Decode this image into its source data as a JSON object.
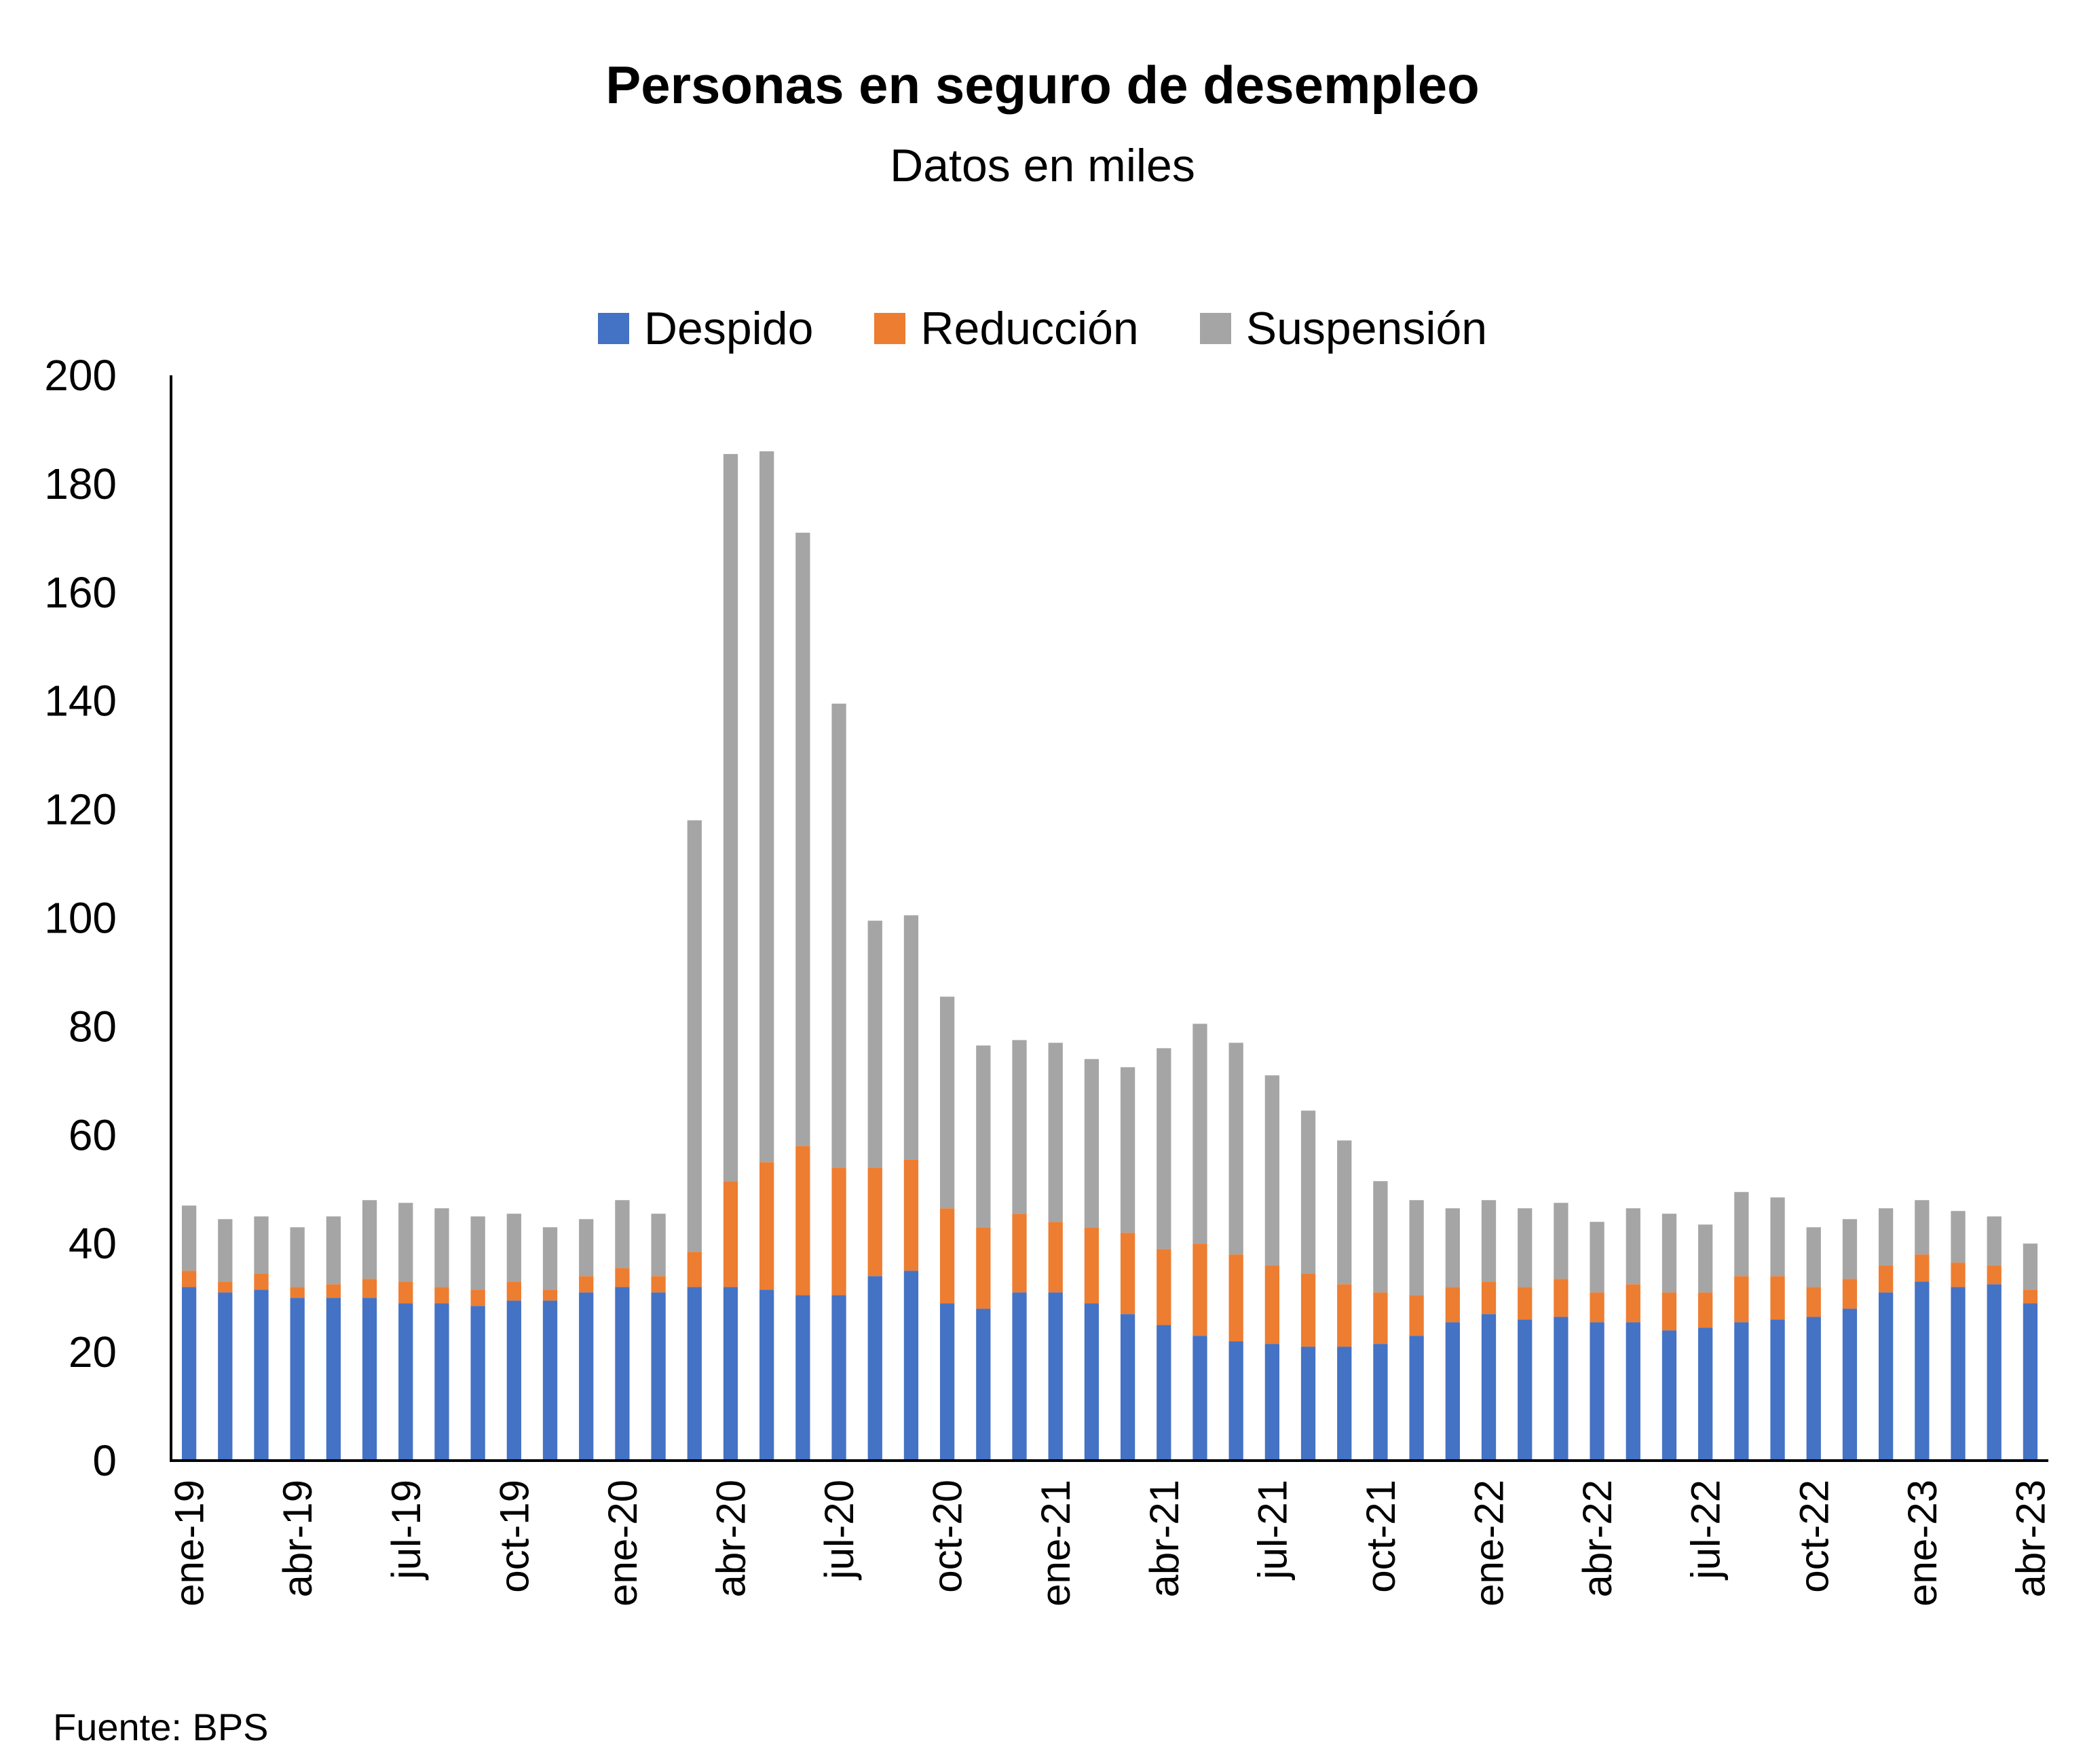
{
  "chart_data": {
    "type": "bar",
    "stacked": true,
    "title": "Personas en seguro de desempleo",
    "subtitle": "Datos en miles",
    "source": "Fuente: BPS",
    "ylim": [
      0,
      200
    ],
    "yticks": [
      0,
      20,
      40,
      60,
      80,
      100,
      120,
      140,
      160,
      180,
      200
    ],
    "legend_position": "top",
    "categories": [
      "ene-19",
      "feb-19",
      "mar-19",
      "abr-19",
      "may-19",
      "jun-19",
      "jul-19",
      "ago-19",
      "sep-19",
      "oct-19",
      "nov-19",
      "dic-19",
      "ene-20",
      "feb-20",
      "mar-20",
      "abr-20",
      "may-20",
      "jun-20",
      "jul-20",
      "ago-20",
      "sep-20",
      "oct-20",
      "nov-20",
      "dic-20",
      "ene-21",
      "feb-21",
      "mar-21",
      "abr-21",
      "may-21",
      "jun-21",
      "jul-21",
      "ago-21",
      "sep-21",
      "oct-21",
      "nov-21",
      "dic-21",
      "ene-22",
      "feb-22",
      "mar-22",
      "abr-22",
      "may-22",
      "jun-22",
      "jul-22",
      "ago-22",
      "sep-22",
      "oct-22",
      "nov-22",
      "dic-22",
      "ene-23",
      "feb-23",
      "mar-23",
      "abr-23"
    ],
    "tick_labels": [
      "ene-19",
      "abr-19",
      "jul-19",
      "oct-19",
      "ene-20",
      "abr-20",
      "jul-20",
      "oct-20",
      "ene-21",
      "abr-21",
      "jul-21",
      "oct-21",
      "ene-22",
      "abr-22",
      "jul-22",
      "oct-22",
      "ene-23",
      "abr-23"
    ],
    "series": [
      {
        "name": "Despido",
        "color": "#4472C4",
        "values": [
          32,
          31,
          31.5,
          30,
          30,
          30,
          29,
          29,
          28.5,
          29.5,
          29.5,
          31,
          32,
          31,
          32,
          32,
          31.5,
          30.5,
          30.5,
          34,
          35,
          29,
          28,
          31,
          31,
          29,
          27,
          25,
          23,
          22,
          21.5,
          21,
          21,
          21.5,
          23,
          25.5,
          27,
          26,
          26.5,
          25.5,
          25.5,
          24,
          24.5,
          25.5,
          26,
          26.5,
          28,
          31,
          33,
          32,
          32.5,
          29
        ]
      },
      {
        "name": "Reducción",
        "color": "#ED7D31",
        "values": [
          3,
          2,
          3,
          2,
          2.5,
          3.5,
          4,
          3,
          3,
          3.5,
          2,
          3,
          3.5,
          3,
          6.5,
          19.5,
          23.5,
          27.5,
          23.5,
          20,
          20.5,
          17.5,
          15,
          14.5,
          13,
          14,
          15,
          14,
          17,
          16,
          14.5,
          13.5,
          11.5,
          9.5,
          7.5,
          6.5,
          6,
          6,
          7,
          5.5,
          7,
          7,
          6.5,
          8.5,
          8,
          5.5,
          5.5,
          5,
          5,
          4.5,
          3.5,
          2.5
        ]
      },
      {
        "name": "Suspensión",
        "color": "#A5A5A5",
        "values": [
          12,
          11.5,
          10.5,
          11,
          12.5,
          14.5,
          14.5,
          14.5,
          13.5,
          12.5,
          11.5,
          10.5,
          12.5,
          11.5,
          79.5,
          134,
          131,
          113,
          85.5,
          45.5,
          45,
          39,
          33.5,
          32,
          33,
          31,
          30.5,
          37,
          40.5,
          39,
          35,
          30,
          26.5,
          20.5,
          17.5,
          14.5,
          15,
          14.5,
          14,
          13,
          14,
          14.5,
          12.5,
          15.5,
          14.5,
          11,
          11,
          10.5,
          10,
          9.5,
          9,
          8.5
        ]
      }
    ]
  }
}
